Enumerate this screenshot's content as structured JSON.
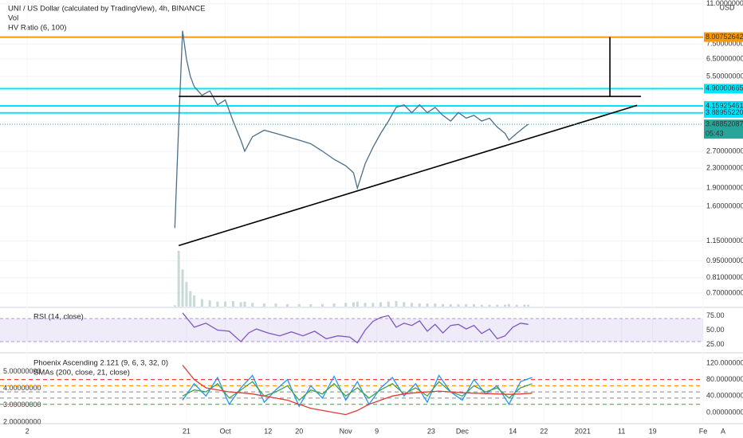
{
  "chart_data": [
    {
      "type": "line",
      "title": "UNI / US Dollar (calculated by TradingView), 4h, BINANCE",
      "subtitles": [
        "Vol",
        "HV Ratio (6, 100)"
      ],
      "currency": "USD",
      "auto_label": "A",
      "log_scale": true,
      "grid": true,
      "xlim": [
        -28,
        153
      ],
      "xticks": [
        {
          "value": -21,
          "label": "2"
        },
        {
          "value": 20,
          "label": "21"
        },
        {
          "value": 30,
          "label": "Oct"
        },
        {
          "value": 41,
          "label": "12"
        },
        {
          "value": 49,
          "label": "20"
        },
        {
          "value": 61,
          "label": "Nov"
        },
        {
          "value": 69,
          "label": "9"
        },
        {
          "value": 83,
          "label": "23"
        },
        {
          "value": 91,
          "label": "Dec"
        },
        {
          "value": 104,
          "label": "14"
        },
        {
          "value": 112,
          "label": "22"
        },
        {
          "value": 122,
          "label": "2021"
        },
        {
          "value": 132,
          "label": "11"
        },
        {
          "value": 140,
          "label": "19"
        },
        {
          "value": 153,
          "label": "Fe"
        }
      ],
      "ylim": [
        0.615,
        11.4
      ],
      "yticks": [
        {
          "value": 11,
          "label": "11.00000000"
        },
        {
          "value": 7.5,
          "label": "7.50000000"
        },
        {
          "value": 6.5,
          "label": "6.50000000"
        },
        {
          "value": 5.5,
          "label": "5.50000000"
        },
        {
          "value": 2.7,
          "label": "2.70000000"
        },
        {
          "value": 2.3,
          "label": "2.30000000"
        },
        {
          "value": 1.9,
          "label": "1.90000000"
        },
        {
          "value": 1.6,
          "label": "1.60000000"
        },
        {
          "value": 1.15,
          "label": "1.15000000"
        },
        {
          "value": 0.95,
          "label": "0.95000000"
        },
        {
          "value": 0.81,
          "label": "0.81000000"
        },
        {
          "value": 0.7,
          "label": "0.70000000"
        }
      ],
      "x": [
        17,
        18,
        19,
        20,
        21,
        22,
        24,
        26,
        28,
        30,
        32,
        34,
        35,
        37,
        40,
        43,
        46,
        49,
        52,
        55,
        58,
        61,
        63,
        64,
        66,
        68,
        70,
        72,
        74,
        76,
        78,
        80,
        82,
        84,
        86,
        88,
        90,
        92,
        94,
        96,
        98,
        100,
        102,
        103,
        105,
        107,
        108
      ],
      "series": [
        {
          "color": "#4a6f8a",
          "values": [
            1.3,
            3.5,
            8.5,
            6.5,
            5.5,
            5.0,
            4.6,
            4.8,
            4.2,
            4.4,
            3.6,
            3.0,
            2.7,
            3.1,
            3.3,
            3.2,
            3.1,
            3.0,
            2.9,
            2.7,
            2.5,
            2.35,
            2.2,
            1.9,
            2.4,
            2.8,
            3.2,
            3.6,
            4.1,
            4.2,
            3.9,
            4.2,
            3.9,
            4.1,
            3.8,
            3.6,
            3.9,
            3.7,
            3.8,
            3.6,
            3.7,
            3.4,
            3.2,
            3.0,
            3.2,
            3.4,
            3.49
          ]
        }
      ],
      "volume": {
        "color": "#c9d9d5",
        "values": [
          2,
          90,
          60,
          40,
          25,
          18,
          12,
          10,
          8,
          8,
          9,
          7,
          8,
          6,
          5,
          5,
          4,
          4,
          4,
          4,
          5,
          6,
          7,
          8,
          6,
          6,
          7,
          8,
          9,
          7,
          6,
          5,
          5,
          5,
          4,
          4,
          4,
          4,
          4,
          3,
          3,
          3,
          3,
          4,
          3,
          3,
          3
        ]
      },
      "levels": [
        {
          "value": 8.00752642,
          "label": "8.00752642",
          "color": "#ff9800"
        },
        {
          "value": 4.90000665,
          "label": "4.90000665",
          "color": "#00e5ff"
        },
        {
          "value": 4.15925461,
          "label": "4.15925461",
          "color": "#00e5ff"
        },
        {
          "value": 3.8895522,
          "label": "3.88955220",
          "color": "#00e5ff"
        }
      ],
      "current": {
        "value": 3.48852087,
        "label": "3.48852087",
        "countdown": "05:43",
        "color": "#26a69a"
      },
      "drawings": [
        {
          "x": [
            18,
            136
          ],
          "values": [
            1.1,
            4.18
          ],
          "color": "#000000"
        },
        {
          "x": [
            18,
            137
          ],
          "values": [
            4.55,
            4.55
          ],
          "color": "#000000"
        },
        {
          "x": [
            129,
            129
          ],
          "values": [
            8.00752642,
            4.55
          ],
          "color": "#000000"
        }
      ]
    },
    {
      "type": "line",
      "title": "RSI (14, close)",
      "xlim": [
        -28,
        153
      ],
      "ylim": [
        12,
        88
      ],
      "yticks": [
        {
          "value": 75,
          "label": "75.00"
        },
        {
          "value": 50,
          "label": "50.00"
        },
        {
          "value": 25,
          "label": "25.00"
        }
      ],
      "band": [
        70,
        30
      ],
      "band_color": "#7e57c2",
      "x": [
        19,
        22,
        25,
        28,
        31,
        34,
        36,
        38,
        41,
        44,
        47,
        50,
        53,
        56,
        59,
        62,
        64,
        66,
        68,
        70,
        72,
        74,
        76,
        78,
        80,
        82,
        84,
        86,
        88,
        90,
        92,
        94,
        96,
        98,
        100,
        102,
        104,
        106,
        108
      ],
      "series": [
        {
          "color": "#7e57c2",
          "values": [
            80,
            55,
            62,
            50,
            48,
            30,
            45,
            52,
            45,
            40,
            47,
            40,
            48,
            35,
            40,
            38,
            28,
            50,
            65,
            72,
            75,
            55,
            62,
            58,
            66,
            48,
            60,
            45,
            58,
            60,
            52,
            58,
            44,
            52,
            35,
            40,
            55,
            62,
            60
          ]
        }
      ]
    },
    {
      "type": "line",
      "title": "Phoenix Ascending 2.121 (9, 6, 3, 32, 0)",
      "subtitles": [
        "SMAs (200, close, 21, close)"
      ],
      "xlim": [
        -28,
        153
      ],
      "ylim": [
        -27,
        143
      ],
      "yticks": [
        {
          "value": 120,
          "label": "120.00000000"
        },
        {
          "value": 80,
          "label": "80.00000000"
        },
        {
          "value": 40,
          "label": "40.00000000"
        },
        {
          "value": 0,
          "label": "0.00000000"
        }
      ],
      "y2lim": [
        1.9,
        6.08
      ],
      "y2ticks": [
        {
          "value": 5,
          "label": "5.00000000"
        },
        {
          "value": 4,
          "label": "4.00000000"
        },
        {
          "value": 3,
          "label": "3.00000000"
        },
        {
          "value": 2,
          "label": "2.00000000"
        }
      ],
      "levels": [
        {
          "value": 80,
          "color": "#f44336"
        },
        {
          "value": 65,
          "color": "#ff9800"
        },
        {
          "value": 50,
          "color": "#9e9e9e"
        },
        {
          "value": 35,
          "color": "#9e9e9e"
        },
        {
          "value": 20,
          "color": "#4caf50"
        }
      ],
      "x": [
        19,
        22,
        25,
        28,
        31,
        34,
        37,
        40,
        43,
        46,
        49,
        52,
        55,
        58,
        61,
        64,
        67,
        70,
        73,
        76,
        79,
        82,
        85,
        88,
        91,
        94,
        97,
        100,
        103,
        106,
        109
      ],
      "series": [
        {
          "color": "#2196f3",
          "values": [
            30,
            70,
            40,
            85,
            20,
            60,
            90,
            25,
            55,
            80,
            15,
            65,
            35,
            88,
            30,
            75,
            20,
            60,
            85,
            40,
            70,
            25,
            90,
            50,
            30,
            80,
            45,
            65,
            20,
            75,
            85
          ]
        },
        {
          "color": "#43a047",
          "values": [
            40,
            55,
            50,
            70,
            35,
            55,
            75,
            40,
            50,
            65,
            30,
            55,
            45,
            70,
            40,
            60,
            35,
            55,
            70,
            45,
            60,
            40,
            75,
            50,
            40,
            65,
            50,
            60,
            35,
            60,
            70
          ]
        },
        {
          "color": "#e53935",
          "values": [
            115,
            80,
            60,
            55,
            50,
            48,
            45,
            40,
            35,
            30,
            20,
            10,
            5,
            0,
            -5,
            5,
            20,
            30,
            40,
            45,
            48,
            50,
            52,
            50,
            48,
            47,
            46,
            45,
            44,
            45,
            47
          ]
        }
      ]
    }
  ]
}
